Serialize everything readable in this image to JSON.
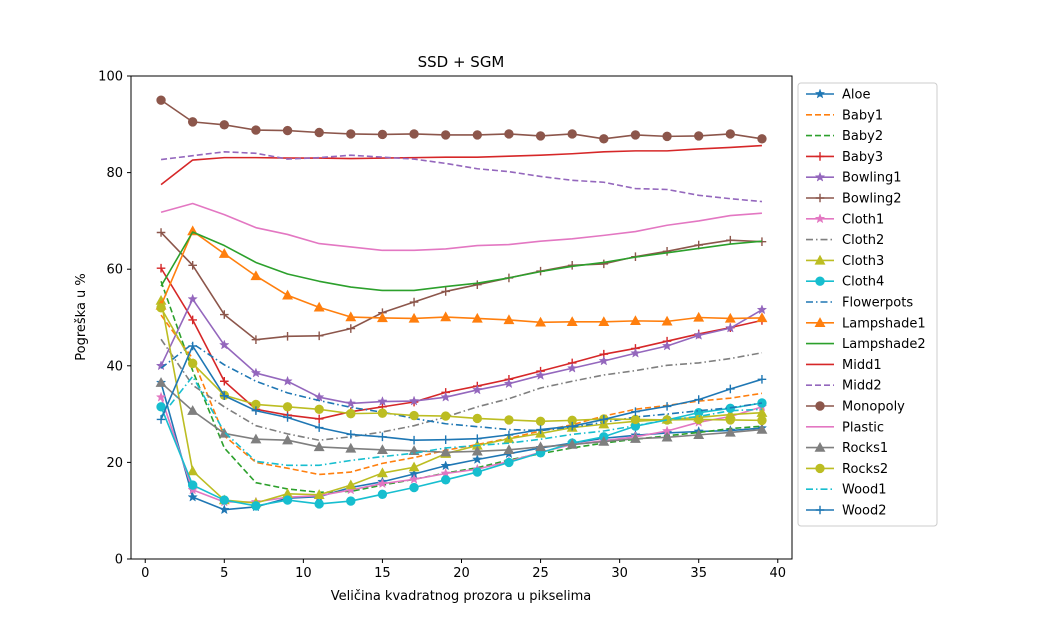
{
  "chart_data": {
    "type": "line",
    "title": "SSD + SGM",
    "xlabel": "Veličina kvadratnog prozora u pikselima",
    "ylabel": "Pogreška u %",
    "xlim": [
      -0.9,
      40.9
    ],
    "ylim": [
      0,
      100
    ],
    "xticks": [
      0,
      5,
      10,
      15,
      20,
      25,
      30,
      35,
      40
    ],
    "yticks": [
      0,
      20,
      40,
      60,
      80,
      100
    ],
    "grid": false,
    "legend_position": "right",
    "x": [
      1,
      3,
      5,
      7,
      9,
      11,
      13,
      15,
      17,
      19,
      21,
      23,
      25,
      27,
      29,
      31,
      33,
      35,
      37,
      39
    ],
    "series": [
      {
        "name": "Aloe",
        "color": "#1f77b4",
        "dash": "solid",
        "marker": "star",
        "values": [
          36.5,
          12.8,
          10.2,
          10.8,
          12.6,
          12.9,
          14.8,
          16.0,
          17.6,
          19.3,
          20.6,
          21.8,
          23.0,
          24.0,
          25.0,
          25.6,
          26.1,
          26.4,
          26.6,
          27.1
        ]
      },
      {
        "name": "Baby1",
        "color": "#ff7f0e",
        "dash": "dashed",
        "marker": "none",
        "values": [
          50.5,
          41.5,
          25.5,
          20.0,
          18.8,
          17.5,
          18.0,
          19.8,
          21.0,
          22.5,
          23.7,
          25.0,
          26.5,
          27.8,
          29.6,
          31.0,
          31.8,
          32.7,
          33.3,
          34.3
        ]
      },
      {
        "name": "Baby2",
        "color": "#2ca02c",
        "dash": "dashed",
        "marker": "none",
        "values": [
          57.5,
          39.0,
          23.0,
          15.8,
          14.5,
          13.8,
          14.0,
          15.3,
          16.5,
          17.8,
          18.9,
          20.5,
          21.8,
          23.0,
          24.0,
          24.8,
          25.5,
          26.2,
          27.0,
          27.5
        ]
      },
      {
        "name": "Baby3",
        "color": "#d62728",
        "dash": "solid",
        "marker": "plus",
        "values": [
          60.2,
          49.5,
          36.8,
          31.0,
          29.8,
          29.0,
          30.5,
          31.5,
          32.5,
          34.5,
          35.8,
          37.2,
          38.9,
          40.6,
          42.4,
          43.6,
          45.1,
          46.6,
          47.9,
          49.4
        ]
      },
      {
        "name": "Bowling1",
        "color": "#9467bd",
        "dash": "solid",
        "marker": "star",
        "values": [
          40.0,
          53.8,
          44.3,
          38.5,
          36.8,
          33.5,
          32.2,
          32.6,
          32.7,
          33.5,
          35.0,
          36.3,
          38.0,
          39.5,
          41.0,
          42.6,
          44.1,
          46.3,
          47.8,
          51.6
        ]
      },
      {
        "name": "Bowling2",
        "color": "#8c564b",
        "dash": "solid",
        "marker": "plus",
        "values": [
          67.6,
          60.8,
          50.6,
          45.4,
          46.1,
          46.2,
          47.7,
          51.0,
          53.2,
          55.4,
          56.8,
          58.2,
          59.6,
          60.8,
          61.1,
          62.6,
          63.7,
          65.0,
          66.0,
          65.7
        ]
      },
      {
        "name": "Cloth1",
        "color": "#e377c2",
        "dash": "solid",
        "marker": "star",
        "values": [
          33.5,
          14.3,
          11.8,
          11.8,
          12.8,
          13.1,
          14.3,
          15.6,
          16.5,
          17.7,
          18.6,
          20.2,
          22.1,
          23.7,
          24.5,
          25.3,
          26.5,
          28.3,
          29.5,
          31.5
        ]
      },
      {
        "name": "Cloth2",
        "color": "#7f7f7f",
        "dash": "dashdot",
        "marker": "none",
        "values": [
          45.5,
          36.0,
          31.5,
          27.6,
          25.9,
          24.6,
          25.3,
          26.3,
          27.6,
          29.4,
          31.5,
          33.2,
          35.4,
          36.8,
          38.1,
          39.0,
          40.1,
          40.6,
          41.5,
          42.7
        ]
      },
      {
        "name": "Cloth3",
        "color": "#bcbd22",
        "dash": "solid",
        "marker": "triangle",
        "values": [
          53.5,
          18.2,
          12.2,
          11.6,
          13.5,
          13.3,
          15.3,
          17.8,
          19.0,
          21.8,
          23.5,
          24.9,
          26.0,
          27.2,
          27.9,
          28.5,
          28.9,
          29.3,
          29.9,
          30.3
        ]
      },
      {
        "name": "Cloth4",
        "color": "#17becf",
        "dash": "solid",
        "marker": "circle",
        "values": [
          31.5,
          15.3,
          12.2,
          11.0,
          12.2,
          11.4,
          12.0,
          13.4,
          14.8,
          16.4,
          18.0,
          20.0,
          22.0,
          24.0,
          25.3,
          27.5,
          28.8,
          30.3,
          31.2,
          32.3
        ]
      },
      {
        "name": "Flowerpots",
        "color": "#1f77b4",
        "dash": "dashdot",
        "marker": "none",
        "values": [
          39.5,
          44.6,
          40.2,
          36.8,
          34.4,
          32.8,
          31.4,
          30.4,
          29.1,
          28.0,
          27.4,
          26.8,
          26.6,
          27.3,
          28.3,
          29.4,
          30.0,
          30.7,
          31.3,
          32.3
        ]
      },
      {
        "name": "Lampshade1",
        "color": "#ff7f0e",
        "dash": "solid",
        "marker": "triangle",
        "values": [
          52.5,
          67.9,
          63.2,
          58.6,
          54.6,
          52.1,
          50.1,
          49.9,
          49.8,
          50.1,
          49.8,
          49.5,
          49.0,
          49.1,
          49.1,
          49.3,
          49.2,
          50.0,
          49.8,
          49.9
        ]
      },
      {
        "name": "Lampshade2",
        "color": "#2ca02c",
        "dash": "solid",
        "marker": "none",
        "values": [
          56.5,
          67.7,
          64.9,
          61.4,
          59.0,
          57.5,
          56.3,
          55.6,
          55.6,
          56.4,
          57.1,
          58.2,
          59.5,
          60.6,
          61.4,
          62.5,
          63.4,
          64.3,
          65.2,
          65.8
        ]
      },
      {
        "name": "Midd1",
        "color": "#d62728",
        "dash": "solid",
        "marker": "none",
        "values": [
          77.5,
          82.6,
          83.1,
          83.1,
          83.0,
          83.0,
          82.9,
          83.0,
          83.1,
          83.2,
          83.2,
          83.4,
          83.6,
          83.9,
          84.3,
          84.5,
          84.5,
          84.9,
          85.2,
          85.6
        ]
      },
      {
        "name": "Midd2",
        "color": "#9467bd",
        "dash": "dashed",
        "marker": "none",
        "values": [
          82.7,
          83.5,
          84.3,
          84.0,
          82.8,
          83.1,
          83.6,
          83.2,
          82.8,
          81.9,
          80.8,
          80.2,
          79.2,
          78.4,
          78.0,
          76.7,
          76.5,
          75.3,
          74.6,
          74.0
        ]
      },
      {
        "name": "Monopoly",
        "color": "#8c564b",
        "dash": "solid",
        "marker": "circle",
        "values": [
          95.0,
          90.5,
          89.9,
          88.8,
          88.7,
          88.3,
          88.0,
          87.9,
          88.0,
          87.8,
          87.8,
          88.0,
          87.6,
          88.0,
          87.0,
          87.8,
          87.5,
          87.6,
          88.0,
          87.0
        ]
      },
      {
        "name": "Plastic",
        "color": "#e377c2",
        "dash": "solid",
        "marker": "none",
        "values": [
          71.8,
          73.6,
          71.3,
          68.6,
          67.2,
          65.3,
          64.6,
          63.9,
          63.9,
          64.2,
          64.9,
          65.1,
          65.8,
          66.3,
          67.0,
          67.8,
          69.1,
          70.0,
          71.1,
          71.6
        ]
      },
      {
        "name": "Rocks1",
        "color": "#7f7f7f",
        "dash": "solid",
        "marker": "triangle",
        "values": [
          36.5,
          30.7,
          26.0,
          24.8,
          24.6,
          23.2,
          22.9,
          22.6,
          22.4,
          22.1,
          22.3,
          22.6,
          23.2,
          23.7,
          24.3,
          24.9,
          25.2,
          25.7,
          26.2,
          26.8
        ]
      },
      {
        "name": "Rocks2",
        "color": "#bcbd22",
        "dash": "solid",
        "marker": "circle",
        "values": [
          52.0,
          40.5,
          33.9,
          32.0,
          31.5,
          31.0,
          30.1,
          30.2,
          29.7,
          29.6,
          29.1,
          28.8,
          28.5,
          28.7,
          29.0,
          28.9,
          28.8,
          28.9,
          28.8,
          28.7
        ]
      },
      {
        "name": "Wood1",
        "color": "#17becf",
        "dash": "dashdot",
        "marker": "none",
        "values": [
          29.5,
          37.8,
          26.3,
          20.2,
          19.4,
          19.4,
          20.4,
          21.2,
          21.9,
          23.0,
          23.5,
          24.0,
          24.8,
          25.8,
          26.5,
          27.6,
          28.8,
          29.5,
          30.7,
          31.0
        ]
      },
      {
        "name": "Wood2",
        "color": "#1f77b4",
        "dash": "solid",
        "marker": "plus",
        "values": [
          28.9,
          44.1,
          33.8,
          30.7,
          29.3,
          27.2,
          25.8,
          25.3,
          24.6,
          24.7,
          24.9,
          25.7,
          26.8,
          27.5,
          28.9,
          30.5,
          31.6,
          33.0,
          35.2,
          37.2
        ]
      }
    ]
  }
}
